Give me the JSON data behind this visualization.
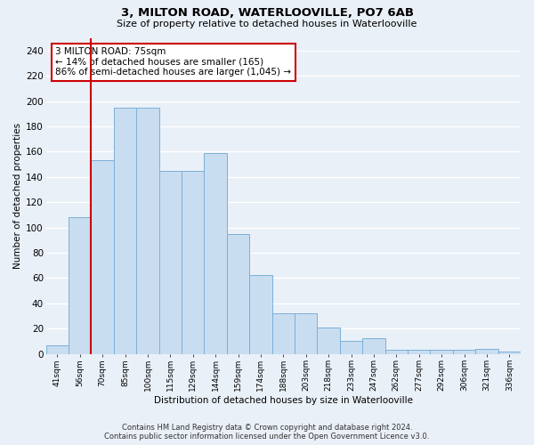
{
  "title1": "3, MILTON ROAD, WATERLOOVILLE, PO7 6AB",
  "title2": "Size of property relative to detached houses in Waterlooville",
  "xlabel": "Distribution of detached houses by size in Waterlooville",
  "ylabel": "Number of detached properties",
  "categories": [
    "41sqm",
    "56sqm",
    "70sqm",
    "85sqm",
    "100sqm",
    "115sqm",
    "129sqm",
    "144sqm",
    "159sqm",
    "174sqm",
    "188sqm",
    "203sqm",
    "218sqm",
    "233sqm",
    "247sqm",
    "262sqm",
    "277sqm",
    "292sqm",
    "306sqm",
    "321sqm",
    "336sqm"
  ],
  "values": [
    7,
    108,
    153,
    195,
    195,
    145,
    145,
    159,
    95,
    62,
    32,
    32,
    21,
    10,
    12,
    3,
    3,
    3,
    3,
    4,
    2
  ],
  "bar_color": "#c9ddf0",
  "bar_edge_color": "#7ab0d8",
  "vline_x": 1.5,
  "vline_color": "#cc0000",
  "annotation_text": "3 MILTON ROAD: 75sqm\n← 14% of detached houses are smaller (165)\n86% of semi-detached houses are larger (1,045) →",
  "annotation_box_color": "#ffffff",
  "annotation_box_edge": "#cc0000",
  "ylim": [
    0,
    250
  ],
  "yticks": [
    0,
    20,
    40,
    60,
    80,
    100,
    120,
    140,
    160,
    180,
    200,
    220,
    240
  ],
  "background_color": "#eaf0f8",
  "grid_color": "#ffffff",
  "footer_line1": "Contains HM Land Registry data © Crown copyright and database right 2024.",
  "footer_line2": "Contains public sector information licensed under the Open Government Licence v3.0."
}
